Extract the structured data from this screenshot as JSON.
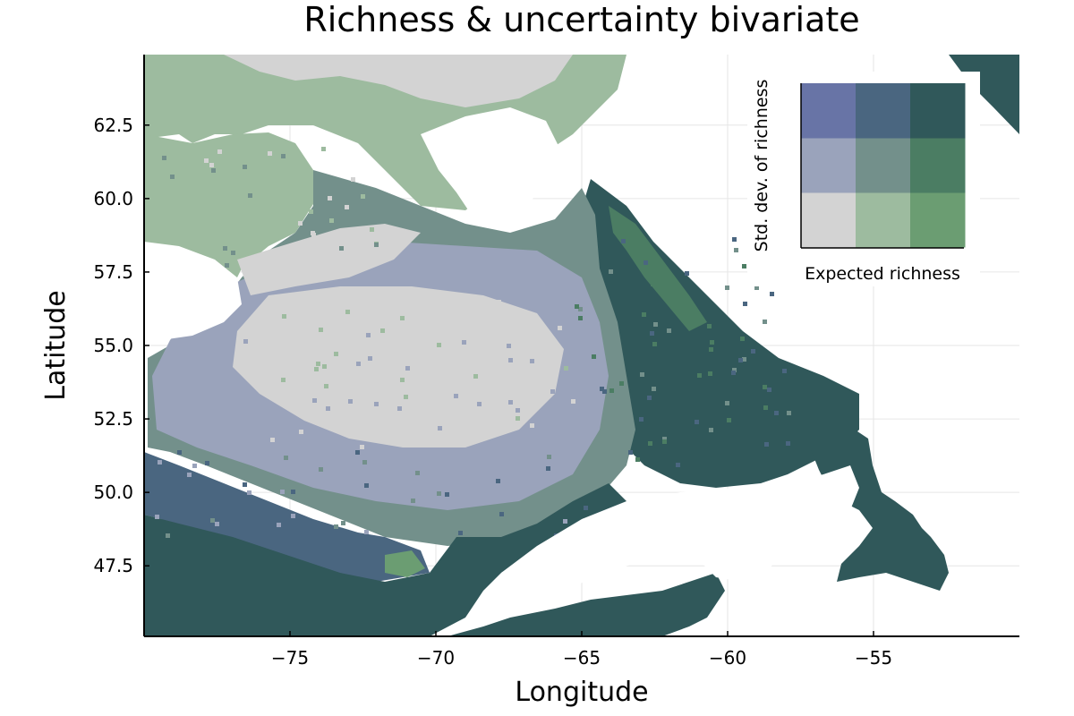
{
  "title": "Richness & uncertainty bivariate",
  "x_axis": {
    "label": "Longitude",
    "ticks": [
      "−75",
      "−70",
      "−65",
      "−60",
      "−55"
    ],
    "values": [
      -75,
      -70,
      -65,
      -60,
      -55
    ],
    "range": [
      -80,
      -50
    ]
  },
  "y_axis": {
    "label": "Latitude",
    "ticks": [
      "47.5",
      "50.0",
      "52.5",
      "55.0",
      "57.5",
      "60.0",
      "62.5"
    ],
    "values": [
      47.5,
      50.0,
      52.5,
      55.0,
      57.5,
      60.0,
      62.5
    ],
    "range": [
      45.1,
      64.9
    ]
  },
  "grid": true,
  "legend": {
    "placement": "top-right",
    "x_label": "Expected richness",
    "y_label": "Std. dev. of richness",
    "colors": [
      [
        "#d3d3d3",
        "#9dbb9f",
        "#6b9d72"
      ],
      [
        "#9aa3bb",
        "#73908b",
        "#4b7d63"
      ],
      [
        "#6874a6",
        "#4a6680",
        "#30585a"
      ]
    ]
  },
  "palette": {
    "low_low": "#d3d3d3",
    "low_mid": "#9aa3bb",
    "mid_mid": "#73908b",
    "mid_high": "#4a6680",
    "high_high": "#30585a",
    "rich_low": "#9dbb9f",
    "rich_mid": "#4b7d63",
    "rich_high_low": "#6b9d72",
    "water": "#ffffff"
  }
}
